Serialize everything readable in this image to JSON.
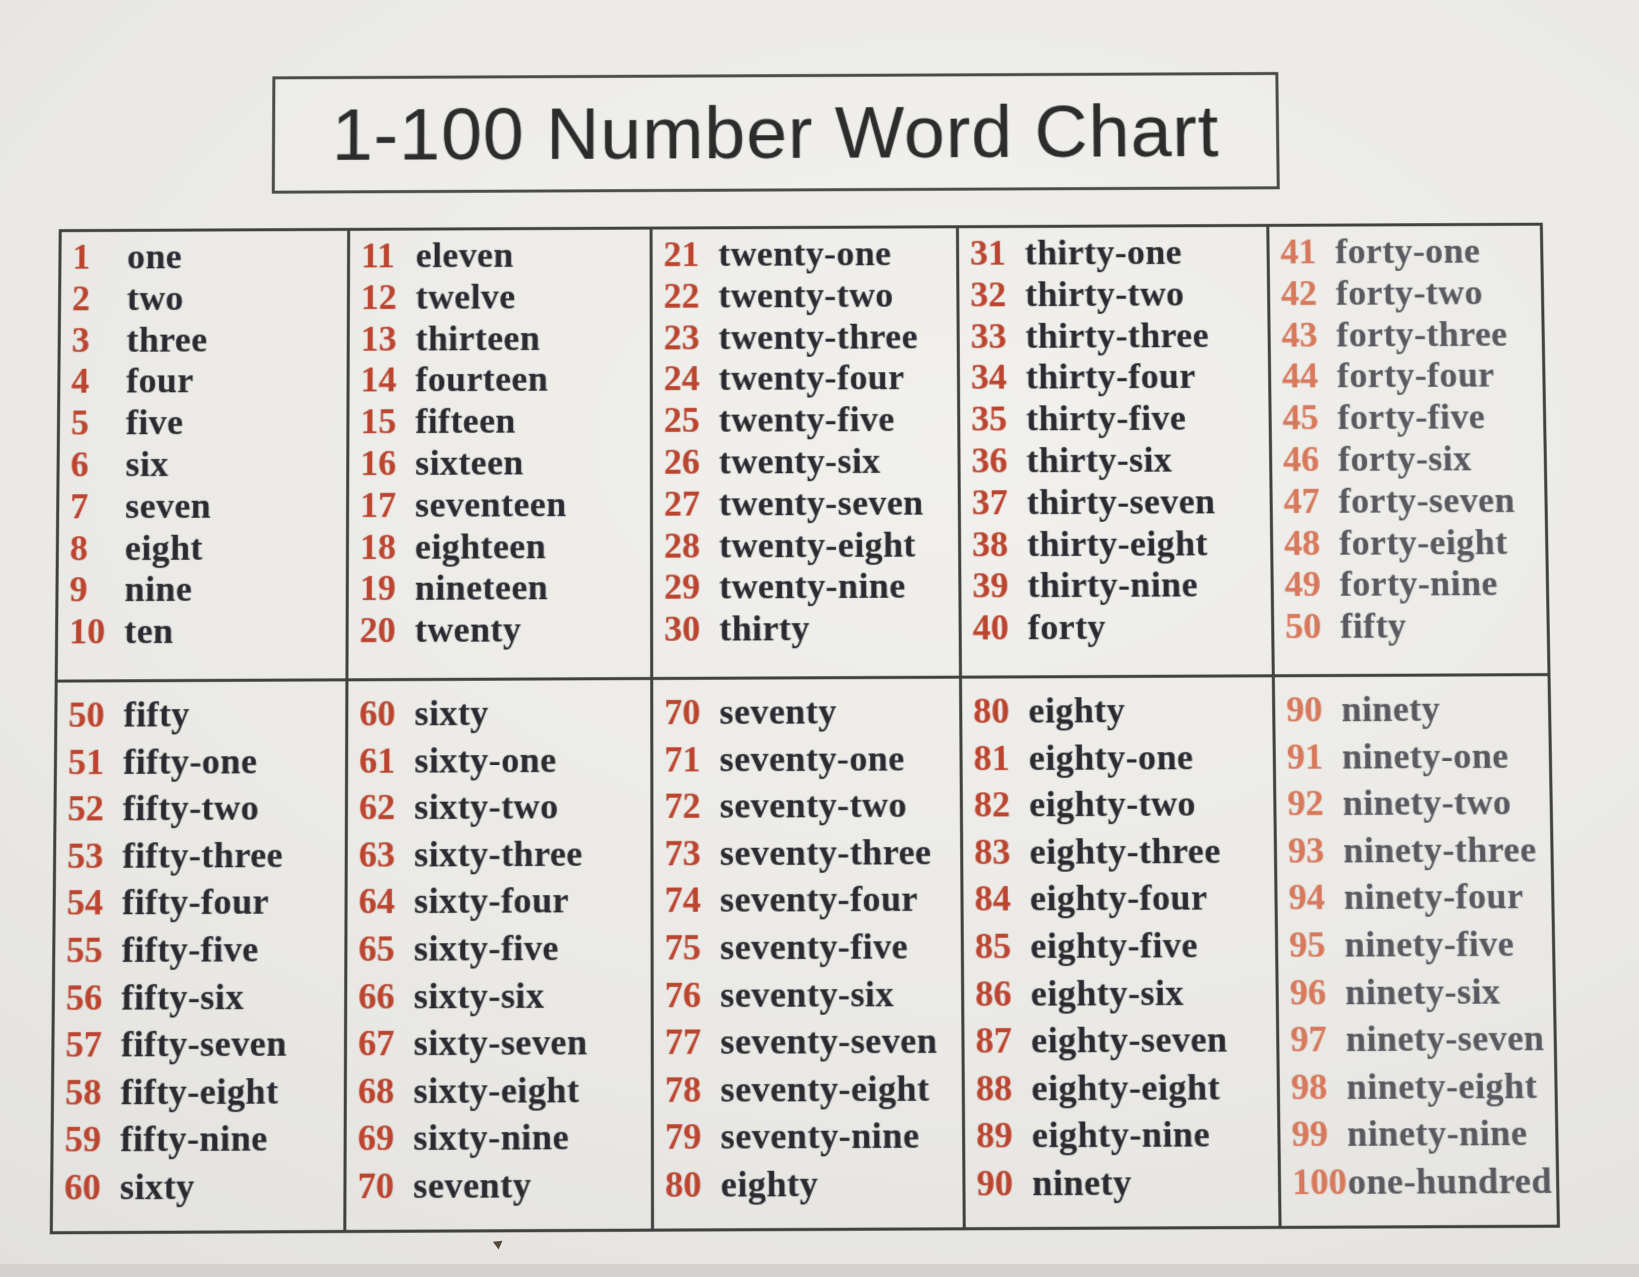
{
  "title": "1-100 Number Word Chart",
  "colors": {
    "paper": "#eae9e5",
    "border": "#414141",
    "title_color": "#2c2c2c",
    "number_red": "#bc4530",
    "number_red_faded": "#d8795c",
    "word_dark": "#2a2a30",
    "word_faded": "#595960"
  },
  "table": {
    "columns": 5,
    "rows": [
      {
        "cells": [
          {
            "faded": false,
            "entries": [
              [
                "1",
                "one"
              ],
              [
                "2",
                "two"
              ],
              [
                "3",
                "three"
              ],
              [
                "4",
                "four"
              ],
              [
                "5",
                "five"
              ],
              [
                "6",
                "six"
              ],
              [
                "7",
                "seven"
              ],
              [
                "8",
                "eight"
              ],
              [
                "9",
                "nine"
              ],
              [
                "10",
                "ten"
              ]
            ]
          },
          {
            "faded": false,
            "entries": [
              [
                "11",
                "eleven"
              ],
              [
                "12",
                "twelve"
              ],
              [
                "13",
                "thirteen"
              ],
              [
                "14",
                "fourteen"
              ],
              [
                "15",
                "fifteen"
              ],
              [
                "16",
                "sixteen"
              ],
              [
                "17",
                "seventeen"
              ],
              [
                "18",
                "eighteen"
              ],
              [
                "19",
                "nineteen"
              ],
              [
                "20",
                "twenty"
              ]
            ]
          },
          {
            "faded": false,
            "entries": [
              [
                "21",
                "twenty-one"
              ],
              [
                "22",
                "twenty-two"
              ],
              [
                "23",
                "twenty-three"
              ],
              [
                "24",
                "twenty-four"
              ],
              [
                "25",
                "twenty-five"
              ],
              [
                "26",
                "twenty-six"
              ],
              [
                "27",
                "twenty-seven"
              ],
              [
                "28",
                "twenty-eight"
              ],
              [
                "29",
                "twenty-nine"
              ],
              [
                "30",
                "thirty"
              ]
            ]
          },
          {
            "faded": false,
            "entries": [
              [
                "31",
                "thirty-one"
              ],
              [
                "32",
                "thirty-two"
              ],
              [
                "33",
                "thirty-three"
              ],
              [
                "34",
                "thirty-four"
              ],
              [
                "35",
                "thirty-five"
              ],
              [
                "36",
                "thirty-six"
              ],
              [
                "37",
                "thirty-seven"
              ],
              [
                "38",
                "thirty-eight"
              ],
              [
                "39",
                "thirty-nine"
              ],
              [
                "40",
                "forty"
              ]
            ]
          },
          {
            "faded": true,
            "entries": [
              [
                "41",
                "forty-one"
              ],
              [
                "42",
                "forty-two"
              ],
              [
                "43",
                "forty-three"
              ],
              [
                "44",
                "forty-four"
              ],
              [
                "45",
                "forty-five"
              ],
              [
                "46",
                "forty-six"
              ],
              [
                "47",
                "forty-seven"
              ],
              [
                "48",
                "forty-eight"
              ],
              [
                "49",
                "forty-nine"
              ],
              [
                "50",
                "fifty"
              ]
            ]
          }
        ]
      },
      {
        "cells": [
          {
            "faded": false,
            "entries": [
              [
                "50",
                "fifty"
              ],
              [
                "51",
                "fifty-one"
              ],
              [
                "52",
                "fifty-two"
              ],
              [
                "53",
                "fifty-three"
              ],
              [
                "54",
                "fifty-four"
              ],
              [
                "55",
                "fifty-five"
              ],
              [
                "56",
                "fifty-six"
              ],
              [
                "57",
                "fifty-seven"
              ],
              [
                "58",
                "fifty-eight"
              ],
              [
                "59",
                "fifty-nine"
              ],
              [
                "60",
                "sixty"
              ]
            ]
          },
          {
            "faded": false,
            "entries": [
              [
                "60",
                "sixty"
              ],
              [
                "61",
                "sixty-one"
              ],
              [
                "62",
                "sixty-two"
              ],
              [
                "63",
                "sixty-three"
              ],
              [
                "64",
                "sixty-four"
              ],
              [
                "65",
                "sixty-five"
              ],
              [
                "66",
                "sixty-six"
              ],
              [
                "67",
                "sixty-seven"
              ],
              [
                "68",
                "sixty-eight"
              ],
              [
                "69",
                "sixty-nine"
              ],
              [
                "70",
                "seventy"
              ]
            ]
          },
          {
            "faded": false,
            "entries": [
              [
                "70",
                "seventy"
              ],
              [
                "71",
                "seventy-one"
              ],
              [
                "72",
                "seventy-two"
              ],
              [
                "73",
                "seventy-three"
              ],
              [
                "74",
                "seventy-four"
              ],
              [
                "75",
                "seventy-five"
              ],
              [
                "76",
                "seventy-six"
              ],
              [
                "77",
                "seventy-seven"
              ],
              [
                "78",
                "seventy-eight"
              ],
              [
                "79",
                "seventy-nine"
              ],
              [
                "80",
                "eighty"
              ]
            ]
          },
          {
            "faded": false,
            "entries": [
              [
                "80",
                "eighty"
              ],
              [
                "81",
                "eighty-one"
              ],
              [
                "82",
                "eighty-two"
              ],
              [
                "83",
                "eighty-three"
              ],
              [
                "84",
                "eighty-four"
              ],
              [
                "85",
                "eighty-five"
              ],
              [
                "86",
                "eighty-six"
              ],
              [
                "87",
                "eighty-seven"
              ],
              [
                "88",
                "eighty-eight"
              ],
              [
                "89",
                "eighty-nine"
              ],
              [
                "90",
                "ninety"
              ]
            ]
          },
          {
            "faded": true,
            "entries": [
              [
                "90",
                "ninety"
              ],
              [
                "91",
                "ninety-one"
              ],
              [
                "92",
                "ninety-two"
              ],
              [
                "93",
                "ninety-three"
              ],
              [
                "94",
                "ninety-four"
              ],
              [
                "95",
                "ninety-five"
              ],
              [
                "96",
                "ninety-six"
              ],
              [
                "97",
                "ninety-seven"
              ],
              [
                "98",
                "ninety-eight"
              ],
              [
                "99",
                "ninety-nine"
              ],
              [
                "100",
                "one-hundred"
              ]
            ]
          }
        ]
      }
    ]
  }
}
